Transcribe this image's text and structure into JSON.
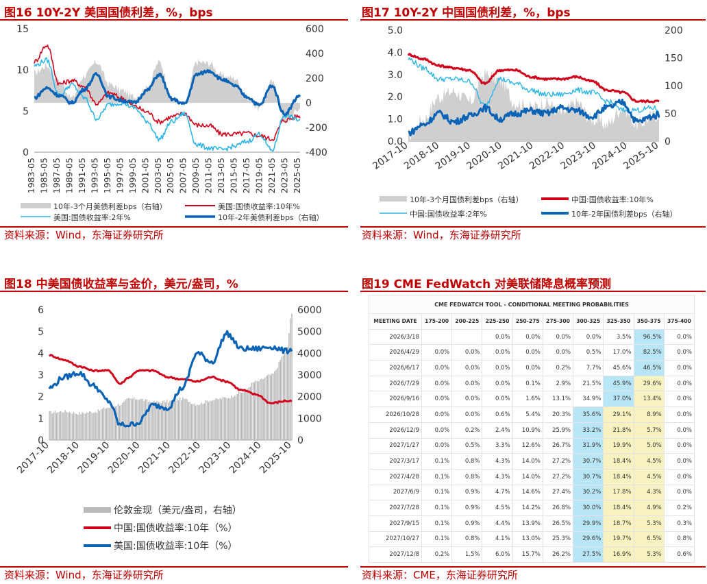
{
  "charts": {
    "fig16": {
      "title": "图16 10Y-2Y 美国国债利差，%，bps",
      "source": "资料来源：Wind，东海证券研究所"
    },
    "fig17": {
      "title": "图17 10Y-2Y 中国国债利差，%，bps",
      "source": "资料来源：Wind，东海证券研究所"
    },
    "fig18": {
      "title": "图18 中美国债收益率与金价，美元/盎司，%",
      "source": "资料来源：Wind，东海证券研究所"
    },
    "fig19": {
      "title": "图19 CME FedWatch 对美联储降息概率预测",
      "source": "资料来源：CME，东海证券研究所"
    }
  },
  "colors": {
    "red": "#d0021b",
    "lightblue": "#2eb5e8",
    "darkblue": "#0a63b5",
    "gray": "#cfcfcf",
    "title_red": "#c00000",
    "cell_blue": "#b9e6f6",
    "cell_yellow": "#f7f2c0"
  },
  "chart_data": [
    {
      "id": "fig16",
      "type": "line",
      "x_ticks": [
        "1983-05",
        "1985-05",
        "1987-05",
        "1989-05",
        "1991-05",
        "1993-05",
        "1995-05",
        "1997-05",
        "1999-05",
        "2001-05",
        "2003-05",
        "2005-05",
        "2007-05",
        "2009-05",
        "2011-05",
        "2013-05",
        "2015-05",
        "2017-05",
        "2019-05",
        "2021-05",
        "2023-05",
        "2025-05"
      ],
      "y_left": {
        "ticks": [
          "15",
          "10",
          "5",
          "0"
        ],
        "ylim": [
          0,
          15
        ]
      },
      "y_right": {
        "ticks": [
          "600",
          "400",
          "200",
          "0",
          "-200",
          "-400"
        ],
        "ylim": [
          -400,
          600
        ]
      },
      "legend": [
        "10年-3个月美债利差bps（右轴）",
        "美国:国债收益率:10年%",
        "美国:国债收益率:2年%",
        "10年-2年美债利差bps（右轴）"
      ],
      "x": [
        1983,
        1985,
        1987,
        1989,
        1991,
        1993,
        1995,
        1997,
        1999,
        2001,
        2003,
        2005,
        2007,
        2009,
        2011,
        2013,
        2015,
        2017,
        2019,
        2021,
        2023,
        2025.5
      ],
      "series": [
        {
          "name": "10年-3个月美债利差bps（右轴）",
          "axis": "right",
          "kind": "area",
          "values": [
            240,
            300,
            180,
            40,
            220,
            330,
            150,
            100,
            50,
            120,
            330,
            40,
            -20,
            330,
            320,
            220,
            200,
            50,
            -50,
            170,
            -150,
            -50
          ]
        },
        {
          "name": "美国:国债收益率:10年%",
          "axis": "left",
          "values": [
            11.0,
            13.0,
            8.3,
            8.7,
            8.0,
            5.9,
            7.2,
            6.6,
            5.6,
            4.9,
            3.7,
            4.3,
            4.7,
            3.3,
            3.2,
            2.2,
            2.2,
            2.3,
            2.0,
            1.6,
            3.9,
            4.4
          ]
        },
        {
          "name": "美国:国债收益率:2年%",
          "axis": "left",
          "values": [
            10.5,
            11.2,
            6.9,
            8.2,
            6.6,
            4.1,
            5.8,
            6.0,
            5.4,
            3.8,
            1.6,
            3.7,
            4.7,
            0.9,
            0.5,
            0.3,
            0.7,
            1.3,
            2.2,
            0.2,
            4.5,
            3.9
          ]
        },
        {
          "name": "10年-2年美债利差bps（右轴）",
          "axis": "right",
          "values": [
            40,
            120,
            60,
            0,
            110,
            230,
            50,
            20,
            0,
            100,
            230,
            30,
            -10,
            230,
            260,
            190,
            140,
            50,
            -20,
            140,
            -90,
            60
          ]
        }
      ]
    },
    {
      "id": "fig17",
      "type": "line",
      "x_ticks": [
        "2017-10",
        "2018-10",
        "2019-10",
        "2020-10",
        "2021-10",
        "2022-10",
        "2023-10",
        "2024-10",
        "2025-10"
      ],
      "y_left": {
        "ticks": [
          "5.0",
          "4.0",
          "3.0",
          "2.0",
          "1.0",
          "0.0"
        ],
        "ylim": [
          0,
          5
        ]
      },
      "y_right": {
        "ticks": [
          "200",
          "150",
          "100",
          "50",
          "0"
        ],
        "ylim": [
          0,
          200
        ]
      },
      "legend": [
        "10年-3个月国债利差bps（右轴）",
        "中国:国债收益率:10年%",
        "中国:国债收益率:2年%",
        "10年-2年国债利差bps（右轴）"
      ],
      "x": [
        2017.8,
        2018.3,
        2018.8,
        2019.3,
        2019.8,
        2020.3,
        2020.8,
        2021.3,
        2021.8,
        2022.3,
        2022.8,
        2023.3,
        2023.8,
        2024.3,
        2024.8,
        2025.3,
        2025.8,
        2026.0
      ],
      "series": [
        {
          "name": "10年-3个月国债利差bps（右轴）",
          "axis": "right",
          "kind": "area",
          "values": [
            10,
            40,
            80,
            90,
            70,
            120,
            110,
            70,
            60,
            70,
            50,
            70,
            40,
            30,
            60,
            30,
            45,
            50
          ]
        },
        {
          "name": "中国:国债收益率:10年%",
          "axis": "left",
          "values": [
            3.9,
            3.7,
            3.4,
            3.3,
            3.2,
            2.6,
            3.2,
            3.2,
            2.9,
            2.8,
            2.8,
            2.9,
            2.7,
            2.3,
            2.2,
            1.8,
            1.8,
            1.8
          ]
        },
        {
          "name": "中国:国债收益率:2年%",
          "axis": "left",
          "values": [
            3.7,
            3.3,
            2.8,
            2.8,
            2.7,
            1.6,
            2.8,
            2.6,
            2.3,
            2.1,
            2.1,
            2.3,
            2.2,
            1.8,
            1.4,
            1.4,
            1.5,
            1.4
          ]
        },
        {
          "name": "10年-2年国债利差bps（右轴）",
          "axis": "right",
          "values": [
            15,
            30,
            50,
            35,
            45,
            60,
            40,
            50,
            55,
            50,
            60,
            55,
            45,
            60,
            70,
            35,
            45,
            48
          ]
        }
      ]
    },
    {
      "id": "fig18",
      "type": "line",
      "x_ticks": [
        "2017-10",
        "2018-10",
        "2019-10",
        "2020-10",
        "2021-10",
        "2022-10",
        "2023-10",
        "2024-10",
        "2025-10"
      ],
      "y_left": {
        "ticks": [
          "6",
          "5",
          "4",
          "3",
          "2",
          "1",
          "0"
        ],
        "ylim": [
          0,
          6
        ]
      },
      "y_right": {
        "ticks": [
          "6000",
          "5000",
          "4000",
          "3000",
          "2000",
          "1000",
          "0"
        ],
        "ylim": [
          0,
          6000
        ]
      },
      "legend": [
        "伦敦金现（美元/盎司，右轴）",
        "中国:国债收益率:10年（%）",
        "美国:国债收益率:10年（%）"
      ],
      "x": [
        2017.8,
        2018.3,
        2018.8,
        2019.3,
        2019.8,
        2020.2,
        2020.5,
        2020.8,
        2021.3,
        2021.8,
        2022.3,
        2022.8,
        2023.3,
        2023.8,
        2024.3,
        2024.8,
        2025.3,
        2025.8,
        2026.0
      ],
      "series": [
        {
          "name": "伦敦金现（美元/盎司，右轴）",
          "axis": "right",
          "kind": "bar",
          "values": [
            1280,
            1320,
            1230,
            1300,
            1500,
            1650,
            1900,
            1900,
            1750,
            1780,
            1900,
            1650,
            1850,
            1950,
            2200,
            2700,
            3000,
            4000,
            5800
          ]
        },
        {
          "name": "中国:国债收益率:10年（%）",
          "axis": "left",
          "values": [
            3.9,
            3.7,
            3.4,
            3.2,
            3.2,
            2.6,
            2.9,
            3.2,
            3.2,
            2.9,
            2.8,
            2.7,
            2.9,
            2.7,
            2.3,
            2.1,
            1.7,
            1.8,
            1.8
          ]
        },
        {
          "name": "美国:国债收益率:10年（%）",
          "axis": "left",
          "values": [
            2.4,
            2.9,
            3.1,
            2.5,
            1.8,
            0.7,
            0.7,
            0.8,
            1.6,
            1.5,
            2.4,
            4.0,
            3.6,
            4.9,
            4.2,
            4.2,
            4.3,
            4.1,
            4.2
          ]
        }
      ]
    },
    {
      "id": "fig19",
      "type": "table",
      "header_title": "CME FEDWATCH TOOL - CONDITIONAL MEETING PROBABILITIES",
      "columns": [
        "MEETING DATE",
        "175-200",
        "200-225",
        "225-250",
        "250-275",
        "275-300",
        "300-325",
        "325-350",
        "350-375",
        "375-400"
      ],
      "rows": [
        [
          "2026/3/18",
          "",
          "",
          "0.0%",
          "0.0%",
          "0.0%",
          "0.0%",
          "3.5%",
          "96.5%",
          "0.0%"
        ],
        [
          "2026/4/29",
          "0.0%",
          "0.0%",
          "0.0%",
          "0.0%",
          "0.0%",
          "0.5%",
          "17.0%",
          "82.5%",
          "0.0%"
        ],
        [
          "2026/6/17",
          "0.0%",
          "0.0%",
          "0.0%",
          "0.0%",
          "0.2%",
          "7.7%",
          "45.6%",
          "46.5%",
          "0.0%"
        ],
        [
          "2026/7/29",
          "0.0%",
          "0.0%",
          "0.0%",
          "0.1%",
          "2.9%",
          "21.5%",
          "45.9%",
          "29.6%",
          "0.0%"
        ],
        [
          "2026/9/16",
          "0.0%",
          "0.0%",
          "0.0%",
          "1.6%",
          "13.1%",
          "34.9%",
          "37.0%",
          "13.4%",
          "0.0%"
        ],
        [
          "2026/10/28",
          "0.0%",
          "0.0%",
          "0.6%",
          "5.4%",
          "20.3%",
          "35.6%",
          "29.1%",
          "8.9%",
          "0.0%"
        ],
        [
          "2026/12/9",
          "0.0%",
          "0.2%",
          "2.4%",
          "10.9%",
          "25.9%",
          "33.2%",
          "21.8%",
          "5.7%",
          "0.0%"
        ],
        [
          "2027/1/27",
          "0.0%",
          "0.5%",
          "3.3%",
          "12.6%",
          "26.7%",
          "31.9%",
          "19.9%",
          "5.0%",
          "0.0%"
        ],
        [
          "2027/3/17",
          "0.1%",
          "0.8%",
          "4.3%",
          "14.0%",
          "27.2%",
          "30.7%",
          "18.4%",
          "4.5%",
          "0.0%"
        ],
        [
          "2027/4/28",
          "0.1%",
          "0.8%",
          "4.3%",
          "14.0%",
          "27.2%",
          "30.7%",
          "18.4%",
          "4.5%",
          "0.0%"
        ],
        [
          "2027/6/9",
          "0.1%",
          "0.9%",
          "4.7%",
          "14.6%",
          "27.4%",
          "30.2%",
          "17.8%",
          "4.3%",
          "0.0%"
        ],
        [
          "2027/7/28",
          "0.1%",
          "0.9%",
          "4.5%",
          "14.2%",
          "26.8%",
          "30.0%",
          "18.4%",
          "4.9%",
          "0.2%"
        ],
        [
          "2027/9/15",
          "0.1%",
          "0.9%",
          "4.4%",
          "13.9%",
          "26.5%",
          "29.9%",
          "18.7%",
          "5.3%",
          "0.3%"
        ],
        [
          "2027/10/27",
          "0.1%",
          "0.8%",
          "4.1%",
          "13.0%",
          "25.3%",
          "29.6%",
          "19.7%",
          "6.5%",
          "0.8%"
        ],
        [
          "2027/12/8",
          "0.2%",
          "1.5%",
          "6.0%",
          "15.7%",
          "26.2%",
          "27.5%",
          "16.9%",
          "5.3%",
          "0.6%"
        ]
      ],
      "highlights": [
        {
          "row": 0,
          "col": 8,
          "color": "blue"
        },
        {
          "row": 1,
          "col": 8,
          "color": "blue"
        },
        {
          "row": 2,
          "col": 8,
          "color": "blue"
        },
        {
          "row": 3,
          "col": 7,
          "color": "blue"
        },
        {
          "row": 4,
          "col": 7,
          "color": "blue"
        },
        {
          "row": 3,
          "col": 8,
          "color": "yellow"
        },
        {
          "row": 4,
          "col": 8,
          "color": "yellow"
        },
        {
          "row": 5,
          "col": 6,
          "color": "blue"
        },
        {
          "row": 6,
          "col": 6,
          "color": "blue"
        },
        {
          "row": 7,
          "col": 6,
          "color": "blue"
        },
        {
          "row": 8,
          "col": 6,
          "color": "blue"
        },
        {
          "row": 9,
          "col": 6,
          "color": "blue"
        },
        {
          "row": 10,
          "col": 6,
          "color": "blue"
        },
        {
          "row": 11,
          "col": 6,
          "color": "blue"
        },
        {
          "row": 12,
          "col": 6,
          "color": "blue"
        },
        {
          "row": 13,
          "col": 6,
          "color": "blue"
        },
        {
          "row": 14,
          "col": 6,
          "color": "blue"
        },
        {
          "row": 5,
          "col": 7,
          "color": "yellow"
        },
        {
          "row": 6,
          "col": 7,
          "color": "yellow"
        },
        {
          "row": 7,
          "col": 7,
          "color": "yellow"
        },
        {
          "row": 8,
          "col": 7,
          "color": "yellow"
        },
        {
          "row": 9,
          "col": 7,
          "color": "yellow"
        },
        {
          "row": 10,
          "col": 7,
          "color": "yellow"
        },
        {
          "row": 11,
          "col": 7,
          "color": "yellow"
        },
        {
          "row": 12,
          "col": 7,
          "color": "yellow"
        },
        {
          "row": 13,
          "col": 7,
          "color": "yellow"
        },
        {
          "row": 14,
          "col": 7,
          "color": "yellow"
        },
        {
          "row": 5,
          "col": 8,
          "color": "yellow"
        },
        {
          "row": 6,
          "col": 8,
          "color": "yellow"
        },
        {
          "row": 7,
          "col": 8,
          "color": "yellow"
        },
        {
          "row": 8,
          "col": 8,
          "color": "yellow"
        },
        {
          "row": 9,
          "col": 8,
          "color": "yellow"
        },
        {
          "row": 10,
          "col": 8,
          "color": "yellow"
        },
        {
          "row": 11,
          "col": 8,
          "color": "yellow"
        },
        {
          "row": 12,
          "col": 8,
          "color": "yellow"
        },
        {
          "row": 13,
          "col": 8,
          "color": "yellow"
        },
        {
          "row": 14,
          "col": 8,
          "color": "yellow"
        }
      ]
    }
  ]
}
